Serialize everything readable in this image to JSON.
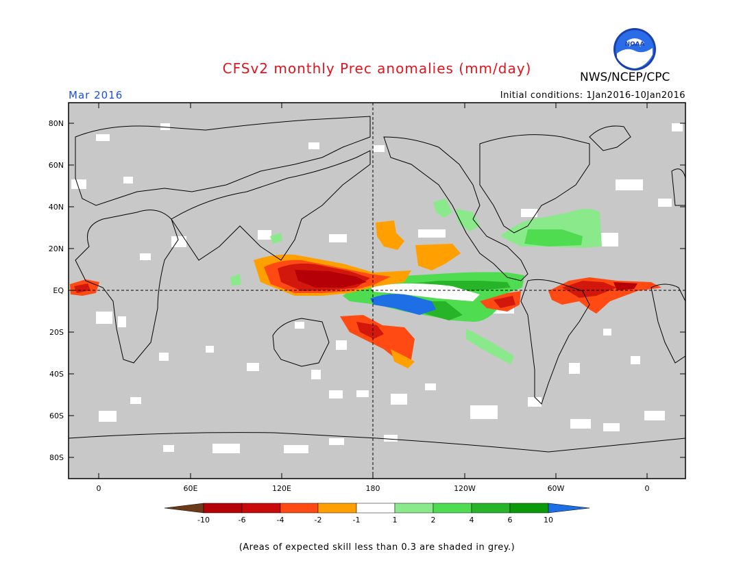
{
  "header": {
    "title": "CFSv2 monthly Prec anomalies (mm/day)",
    "agency": "NWS/NCEP/CPC",
    "month": "Mar 2016",
    "initial_conditions": "Initial conditions: 1Jan2016-10Jan2016",
    "logo_text": "NOAA"
  },
  "map": {
    "lat_labels": [
      "80N",
      "60N",
      "40N",
      "20N",
      "EQ",
      "20S",
      "40S",
      "60S",
      "80S"
    ],
    "lon_labels": [
      "0",
      "60E",
      "120E",
      "180",
      "120W",
      "60W",
      "0"
    ],
    "background_color": "#c8c8c8"
  },
  "colorbar": {
    "tick_labels": [
      "-10",
      "-6",
      "-4",
      "-2",
      "-1",
      "1",
      "2",
      "4",
      "6",
      "10"
    ],
    "colors": [
      "#6b3a1a",
      "#b50008",
      "#d2180c",
      "#ff4a14",
      "#ffa000",
      "#ffffff",
      "#8ae98a",
      "#50dc50",
      "#28b428",
      "#0a9a0a",
      "#1e6ee6"
    ]
  },
  "footnote": "(Areas of expected skill less than 0.3 are shaded in grey.)"
}
